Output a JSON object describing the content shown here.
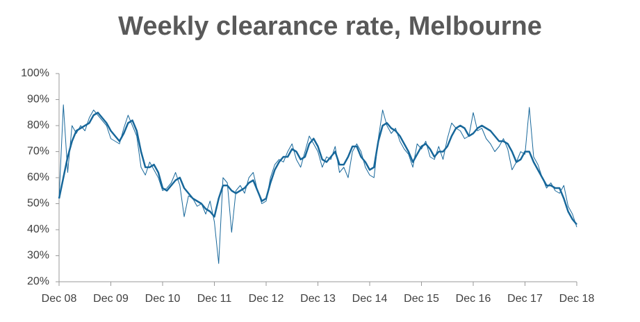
{
  "chart_data": {
    "type": "line",
    "title": "Weekly clearance rate, Melbourne",
    "categories": [
      "Dec 08",
      null,
      null,
      null,
      null,
      null,
      null,
      null,
      null,
      null,
      null,
      null,
      "Dec 09",
      null,
      null,
      null,
      null,
      null,
      null,
      null,
      null,
      null,
      null,
      null,
      "Dec 10",
      null,
      null,
      null,
      null,
      null,
      null,
      null,
      null,
      null,
      null,
      null,
      "Dec 11",
      null,
      null,
      null,
      null,
      null,
      null,
      null,
      null,
      null,
      null,
      null,
      "Dec 12",
      null,
      null,
      null,
      null,
      null,
      null,
      null,
      null,
      null,
      null,
      null,
      "Dec 13",
      null,
      null,
      null,
      null,
      null,
      null,
      null,
      null,
      null,
      null,
      null,
      "Dec 14",
      null,
      null,
      null,
      null,
      null,
      null,
      null,
      null,
      null,
      null,
      null,
      "Dec 15",
      null,
      null,
      null,
      null,
      null,
      null,
      null,
      null,
      null,
      null,
      null,
      "Dec 16",
      null,
      null,
      null,
      null,
      null,
      null,
      null,
      null,
      null,
      null,
      null,
      "Dec 17",
      null,
      null,
      null,
      null,
      null,
      null,
      null,
      null,
      null,
      null,
      null,
      "Dec 18"
    ],
    "series": [
      {
        "color": "#17679a",
        "width": 1,
        "values": [
          52,
          88,
          62,
          80,
          77,
          80,
          78,
          83,
          86,
          84,
          82,
          80,
          75,
          74,
          73,
          79,
          84,
          80,
          76,
          64,
          61,
          66,
          63,
          60,
          55,
          56,
          58,
          62,
          57,
          45,
          53,
          52,
          49,
          50,
          46,
          51,
          43,
          27,
          60,
          58,
          39,
          55,
          57,
          54,
          60,
          62,
          55,
          50,
          51,
          60,
          65,
          67,
          66,
          70,
          73,
          67,
          64,
          70,
          76,
          73,
          70,
          64,
          68,
          67,
          72,
          62,
          64,
          60,
          70,
          73,
          70,
          64,
          61,
          60,
          75,
          86,
          80,
          77,
          79,
          74,
          71,
          69,
          64,
          73,
          71,
          74,
          68,
          67,
          72,
          67,
          75,
          81,
          79,
          78,
          75,
          76,
          85,
          78,
          79,
          75,
          73,
          70,
          72,
          75,
          71,
          63,
          66,
          70,
          69,
          87,
          68,
          65,
          60,
          56,
          58,
          55,
          54,
          57,
          49,
          46,
          41
        ]
      },
      {
        "color": "#17679a",
        "width": 2.5,
        "values": [
          52,
          60,
          68,
          74,
          78,
          79,
          80,
          81,
          84,
          85,
          83,
          81,
          78,
          76,
          74,
          77,
          81,
          82,
          78,
          70,
          64,
          64,
          65,
          62,
          56,
          55,
          57,
          59,
          60,
          56,
          54,
          52,
          51,
          50,
          48,
          47,
          45,
          52,
          57,
          57,
          55,
          54,
          55,
          56,
          58,
          59,
          55,
          51,
          52,
          58,
          63,
          66,
          68,
          68,
          71,
          70,
          67,
          68,
          73,
          75,
          72,
          67,
          66,
          68,
          70,
          65,
          65,
          68,
          72,
          72,
          68,
          66,
          63,
          64,
          74,
          80,
          81,
          79,
          78,
          76,
          73,
          70,
          66,
          69,
          72,
          73,
          71,
          68,
          70,
          70,
          72,
          76,
          79,
          80,
          79,
          76,
          77,
          79,
          80,
          79,
          78,
          76,
          74,
          74,
          73,
          70,
          66,
          67,
          70,
          70,
          66,
          63,
          60,
          57,
          57,
          56,
          56,
          52,
          47,
          44,
          42
        ]
      }
    ],
    "ylim": [
      20,
      100
    ],
    "yticks": [
      {
        "value": 20,
        "label": "20%"
      },
      {
        "value": 30,
        "label": "30%"
      },
      {
        "value": 40,
        "label": "40%"
      },
      {
        "value": 50,
        "label": "50%"
      },
      {
        "value": 60,
        "label": "60%"
      },
      {
        "value": 70,
        "label": "70%"
      },
      {
        "value": 80,
        "label": "80%"
      },
      {
        "value": 90,
        "label": "90%"
      },
      {
        "value": 100,
        "label": "100%"
      }
    ],
    "grid": false
  }
}
